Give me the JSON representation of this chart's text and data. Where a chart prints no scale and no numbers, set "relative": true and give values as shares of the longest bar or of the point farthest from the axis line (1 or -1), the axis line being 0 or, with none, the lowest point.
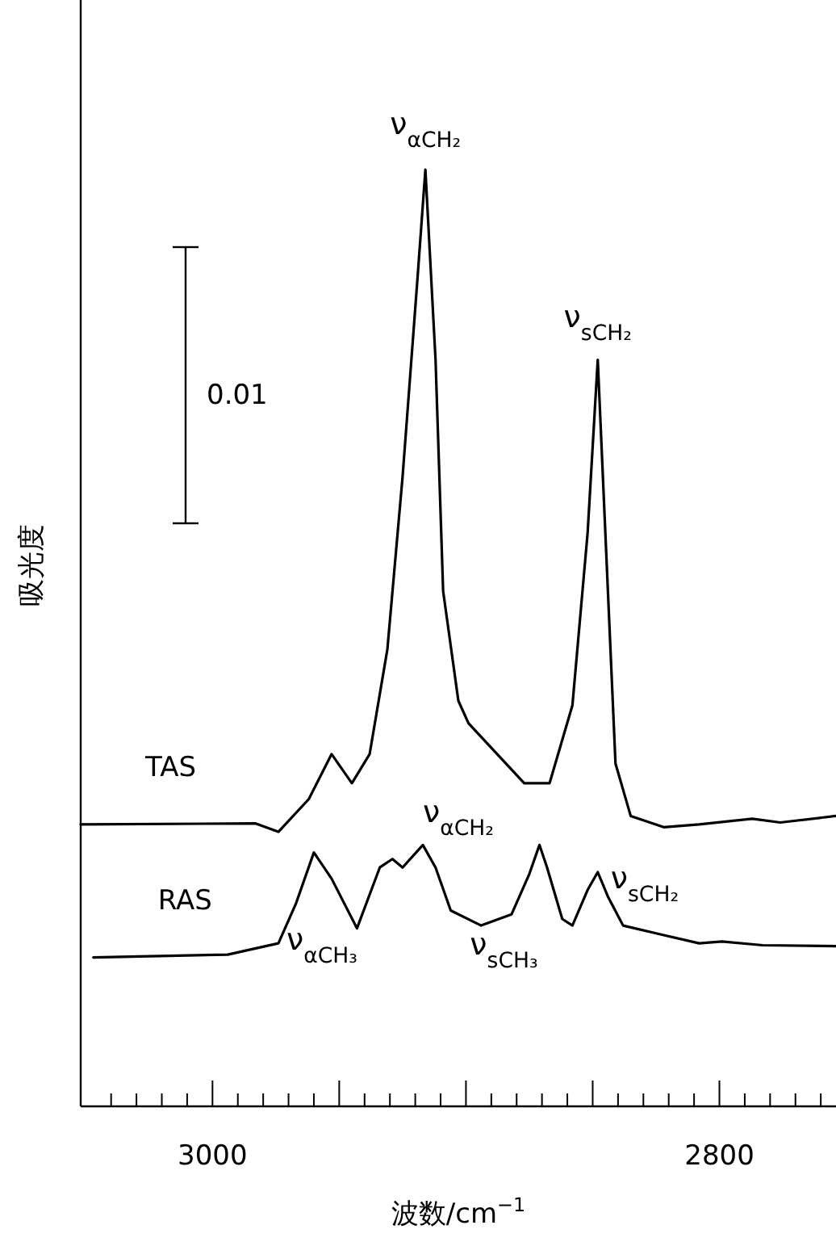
{
  "chart_data": {
    "type": "line",
    "relative": true,
    "xlabel": "波数/cm$^{−1}$",
    "ylabel": "吸光度",
    "xlim": [
      3052,
      2754
    ],
    "xticks": [
      {
        "value": 3040,
        "label": null
      },
      {
        "value": 3030,
        "label": null
      },
      {
        "value": 3020,
        "label": null
      },
      {
        "value": 3010,
        "label": null
      },
      3000,
      {
        "value": 2990,
        "label": null
      },
      {
        "value": 2980,
        "label": null
      },
      {
        "value": 2970,
        "label": null
      },
      {
        "value": 2960,
        "label": null
      },
      {
        "value": 2950,
        "label": null
      },
      {
        "value": 2940,
        "label": null
      },
      {
        "value": 2930,
        "label": null
      },
      {
        "value": 2920,
        "label": null
      },
      {
        "value": 2910,
        "label": null
      },
      {
        "value": 2900,
        "label": null
      },
      {
        "value": 2890,
        "label": null
      },
      {
        "value": 2880,
        "label": null
      },
      {
        "value": 2870,
        "label": null
      },
      {
        "value": 2860,
        "label": null
      },
      {
        "value": 2850,
        "label": null
      },
      {
        "value": 2840,
        "label": null
      },
      {
        "value": 2830,
        "label": null
      },
      {
        "value": 2820,
        "label": null
      },
      {
        "value": 2810,
        "label": null
      },
      2800,
      {
        "value": 2790,
        "label": null
      },
      {
        "value": 2780,
        "label": null
      },
      {
        "value": 2770,
        "label": null
      },
      {
        "value": 2760,
        "label": null
      }
    ],
    "tick_labels": "x",
    "grid": false,
    "marker": "none",
    "line_style": "solid",
    "series": [
      {
        "name": "TAS",
        "color": "#000000",
        "x": [
          3052,
          2983,
          2974,
          2962,
          2953,
          2945,
          2938,
          2931,
          2925,
          2919,
          2916,
          2912,
          2909,
          2903,
          2899,
          2877,
          2867,
          2858,
          2852,
          2848,
          2845,
          2841,
          2835,
          2822,
          2808,
          2787,
          2776,
          2754
        ],
        "values": [
          0.301,
          0.302,
          0.293,
          0.328,
          0.376,
          0.345,
          0.376,
          0.488,
          0.672,
          0.888,
          1.0,
          0.797,
          0.55,
          0.433,
          0.409,
          0.345,
          0.345,
          0.428,
          0.612,
          0.797,
          0.612,
          0.366,
          0.31,
          0.298,
          0.301,
          0.307,
          0.303,
          0.31
        ]
      },
      {
        "name": "RAS",
        "color": "#000000",
        "x": [
          3047,
          2994,
          2974,
          2967,
          2960,
          2953,
          2943,
          2934,
          2929,
          2925,
          2917,
          2912,
          2906,
          2894,
          2882,
          2875,
          2871,
          2868,
          2862,
          2858,
          2852,
          2848,
          2844,
          2838,
          2824,
          2808,
          2799,
          2783,
          2754
        ],
        "values": [
          0.159,
          0.162,
          0.174,
          0.217,
          0.271,
          0.243,
          0.19,
          0.255,
          0.264,
          0.255,
          0.279,
          0.255,
          0.209,
          0.193,
          0.205,
          0.248,
          0.279,
          0.255,
          0.2,
          0.193,
          0.231,
          0.25,
          0.224,
          0.193,
          0.184,
          0.174,
          0.176,
          0.172,
          0.171
        ]
      }
    ],
    "annotations": [
      {
        "text": "ν$_{αCH₂}$",
        "x": 2916,
        "y": 1.0
      },
      {
        "text": "ν$_{sCH₂}$",
        "x": 2848,
        "y": 0.797
      },
      {
        "text": "ν$_{αCH₂}$",
        "x": 2917,
        "y": 0.279
      },
      {
        "text": "ν$_{αCH₃}$",
        "x": 2960,
        "y": 0.271
      },
      {
        "text": "ν$_{sCH₃}$",
        "x": 2871,
        "y": 0.279
      },
      {
        "text": "ν$_{sCH₂}$",
        "x": 2848,
        "y": 0.25
      },
      "0.01"
    ]
  }
}
